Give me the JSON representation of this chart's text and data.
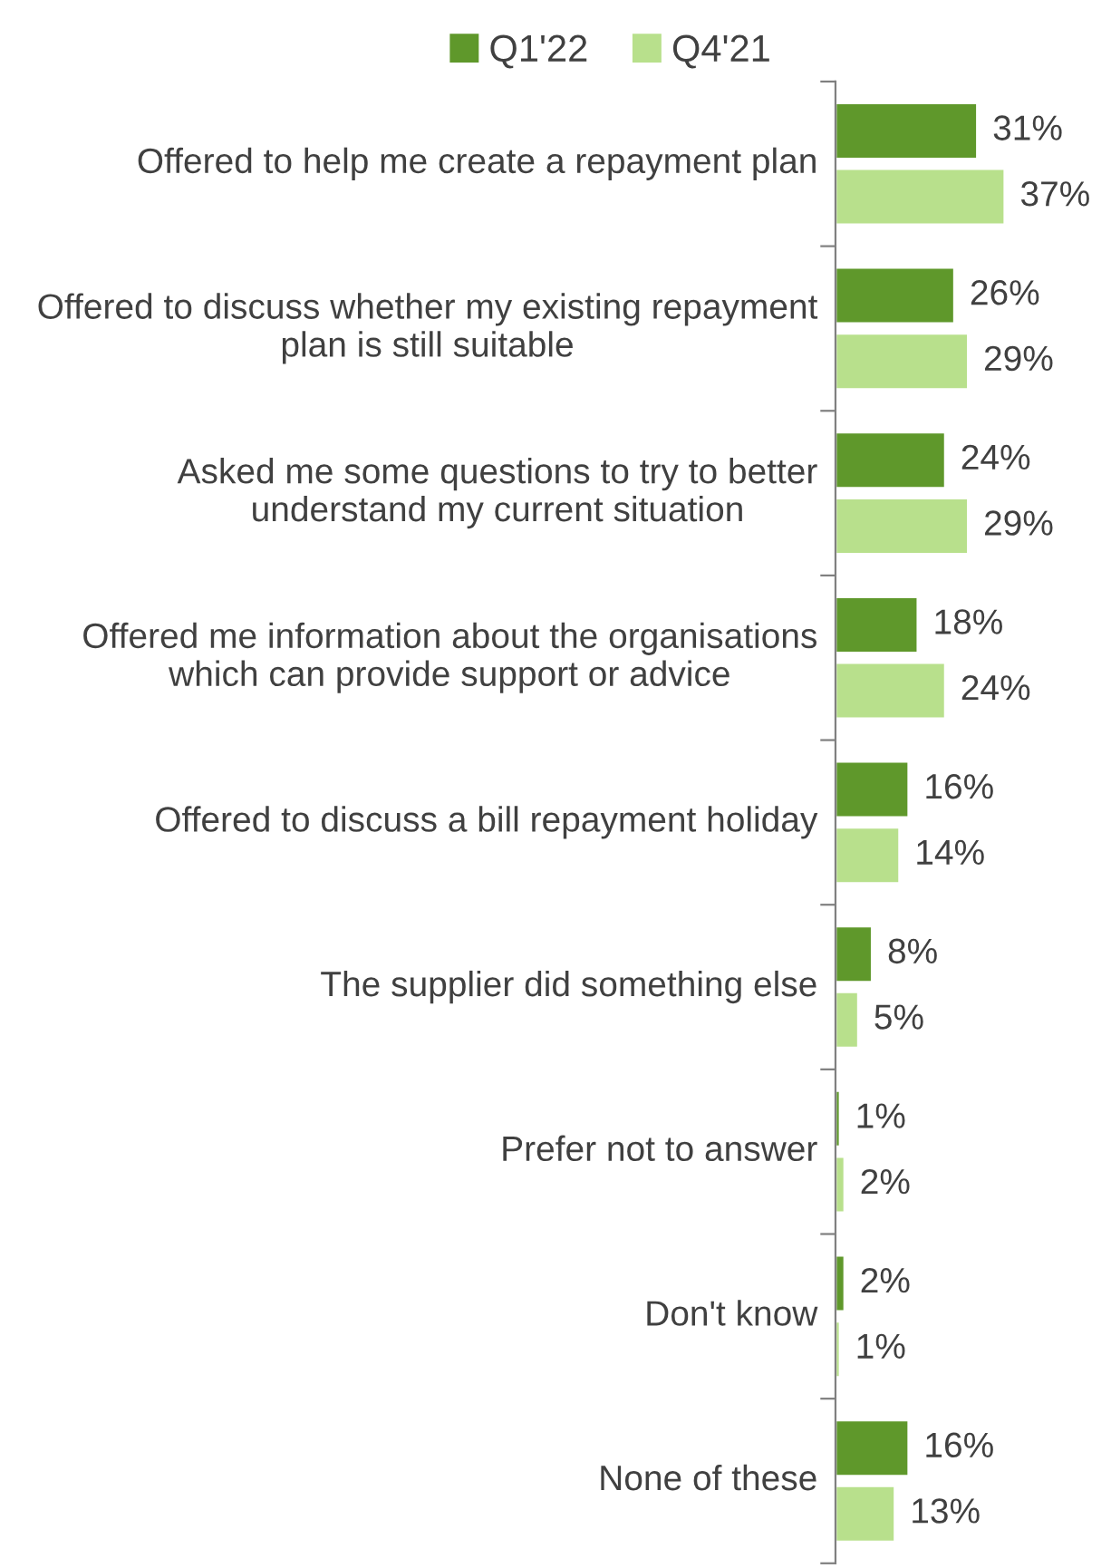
{
  "chart_data": {
    "type": "bar",
    "orientation": "horizontal",
    "categories": [
      "Offered to help me create a repayment plan",
      "Offered to discuss whether my existing repayment plan is still suitable",
      "Asked me some questions to try to better understand my current situation",
      "Offered me information about the organisations which can provide support or advice",
      "Offered to discuss a bill repayment holiday",
      "The supplier did something else",
      "Prefer not to answer",
      "Don't know",
      "None of these"
    ],
    "series": [
      {
        "name": "Q1'22",
        "color": "#5f982b",
        "values": [
          31,
          26,
          24,
          18,
          16,
          8,
          1,
          2,
          16
        ],
        "value_labels": [
          "31%",
          "26%",
          "24%",
          "18%",
          "16%",
          "8%",
          "1%",
          "2%",
          "16%"
        ]
      },
      {
        "name": "Q4'21",
        "color": "#b8e08c",
        "values": [
          37,
          29,
          29,
          24,
          14,
          5,
          2,
          1,
          13
        ],
        "value_labels": [
          "37%",
          "29%",
          "29%",
          "24%",
          "14%",
          "5%",
          "2%",
          "1%",
          "13%"
        ]
      }
    ],
    "legend": "top",
    "grid": false
  }
}
